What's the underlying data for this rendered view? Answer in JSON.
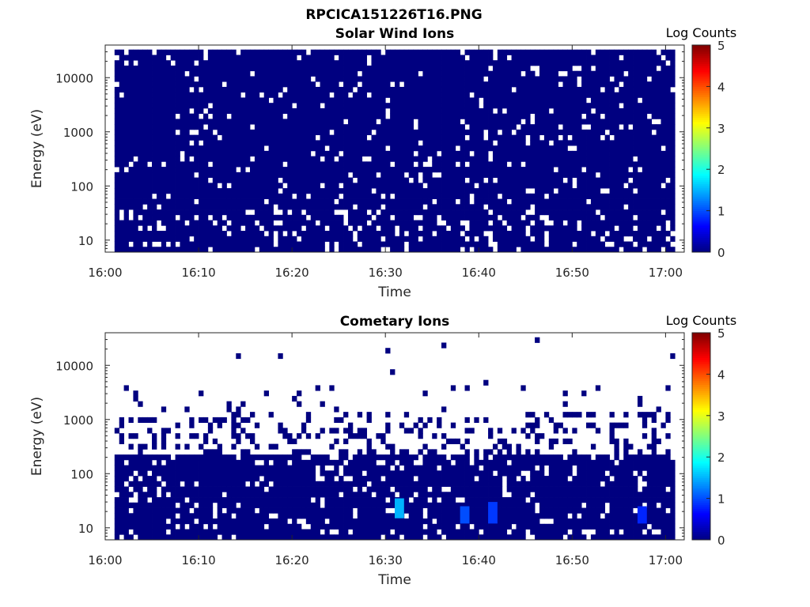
{
  "figure_title": "RPCICA151226T16.PNG",
  "chart_data": [
    {
      "type": "heatmap",
      "title": "Solar Wind Ions",
      "xlabel": "Time",
      "ylabel": "Energy (eV)",
      "x_ticks": [
        "16:00",
        "16:10",
        "16:20",
        "16:30",
        "16:40",
        "16:50",
        "17:00"
      ],
      "x_range": [
        "16:00",
        "17:02"
      ],
      "data_x_range": [
        "16:01",
        "17:01"
      ],
      "y_scale": "log",
      "y_ticks": [
        "10",
        "100",
        "1000",
        "10000"
      ],
      "y_range": [
        6,
        40000
      ],
      "colorbar": {
        "label": "Log Counts",
        "ticks": [
          "0",
          "1",
          "2",
          "3",
          "4",
          "5"
        ],
        "range": [
          0,
          5
        ],
        "colormap": "jet"
      },
      "dominant_value": 0,
      "empty_fraction": 0.07,
      "highlights": []
    },
    {
      "type": "heatmap",
      "title": "Cometary Ions",
      "xlabel": "Time",
      "ylabel": "Energy (eV)",
      "x_ticks": [
        "16:00",
        "16:10",
        "16:20",
        "16:30",
        "16:40",
        "16:50",
        "17:00"
      ],
      "x_range": [
        "16:00",
        "17:02"
      ],
      "data_x_range": [
        "16:01",
        "17:01"
      ],
      "y_scale": "log",
      "y_ticks": [
        "10",
        "100",
        "1000",
        "10000"
      ],
      "y_range": [
        6,
        40000
      ],
      "colorbar": {
        "label": "Log Counts",
        "ticks": [
          "0",
          "1",
          "2",
          "3",
          "4",
          "5"
        ],
        "range": [
          0,
          5
        ],
        "colormap": "jet"
      },
      "dominant_value": 0,
      "dense_below_eV": 250,
      "highlights": [
        {
          "time": "16:31",
          "energy_eV": [
            15,
            35
          ],
          "log_counts": 1.5
        },
        {
          "time": "16:38",
          "energy_eV": [
            12,
            25
          ],
          "log_counts": 1.0
        },
        {
          "time": "16:41",
          "energy_eV": [
            12,
            30
          ],
          "log_counts": 0.9
        },
        {
          "time": "16:57",
          "energy_eV": [
            12,
            25
          ],
          "log_counts": 0.8
        }
      ]
    }
  ]
}
